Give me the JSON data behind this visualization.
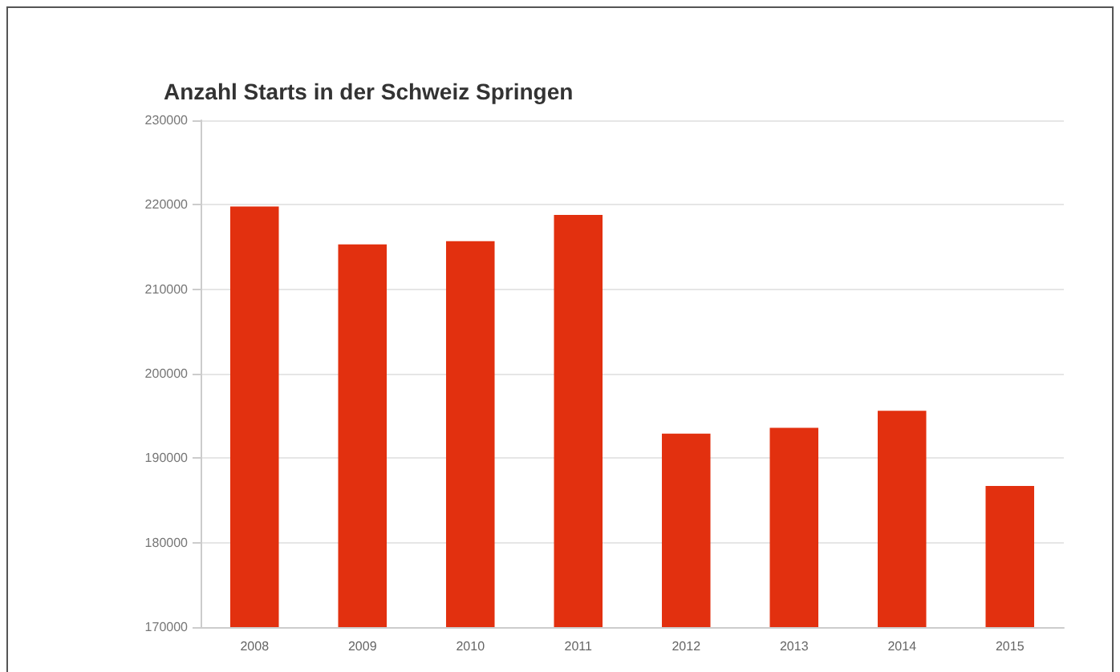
{
  "chart_data": {
    "type": "bar",
    "title": "Anzahl Starts in der Schweiz Springen",
    "categories": [
      "2008",
      "2009",
      "2010",
      "2011",
      "2012",
      "2013",
      "2014",
      "2015"
    ],
    "values": [
      219800,
      215300,
      215700,
      218800,
      192900,
      193600,
      195600,
      186700
    ],
    "color": "#e2300f",
    "ylim": [
      170000,
      230000
    ],
    "yticks": [
      170000,
      180000,
      190000,
      200000,
      210000,
      220000,
      230000
    ],
    "grid": "y"
  }
}
